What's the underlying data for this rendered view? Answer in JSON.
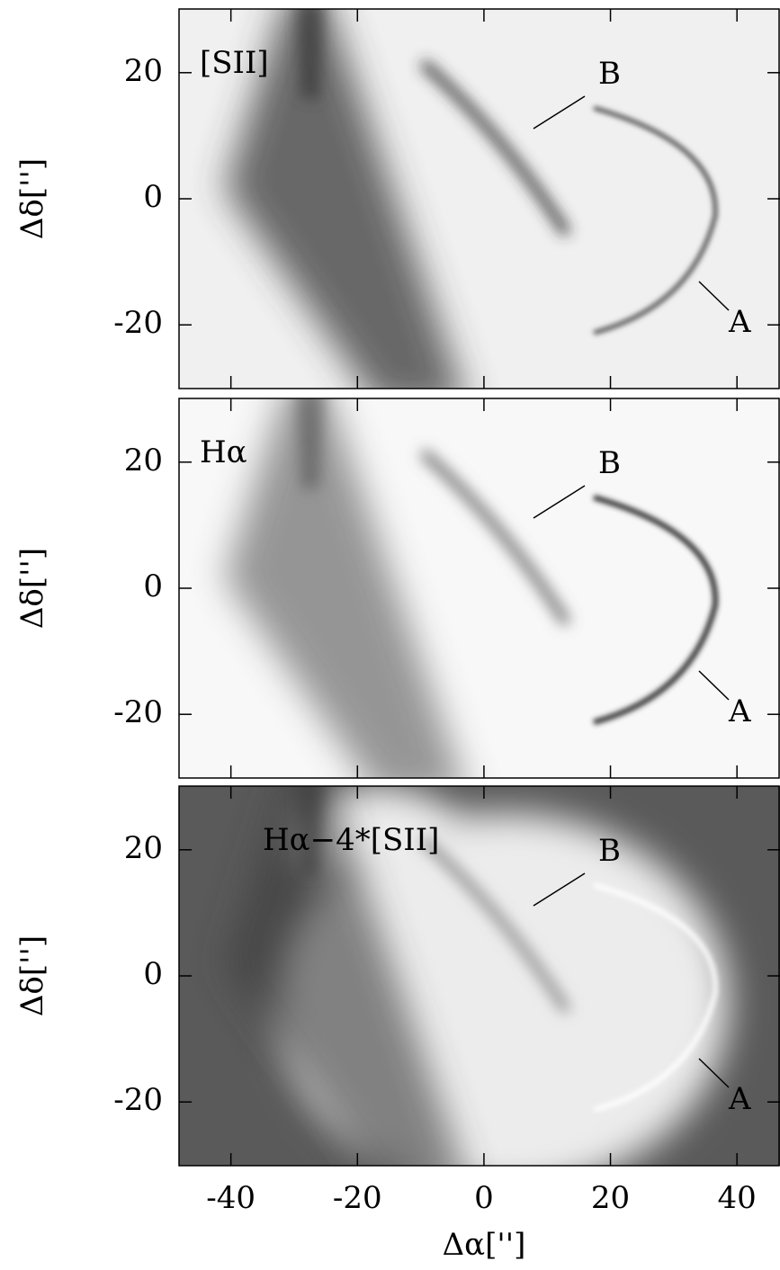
{
  "chart_data": [
    {
      "type": "image",
      "title": "[SII]",
      "annotations": [
        "B",
        "A"
      ],
      "y_label": "Δδ['']",
      "xlim": [
        -48.2,
        46.8
      ],
      "ylim": [
        -30.1,
        30.1
      ],
      "xticks": [
        -40,
        -20,
        0,
        20,
        40
      ],
      "yticks": [
        -20,
        0,
        20
      ]
    },
    {
      "type": "image",
      "title": "Hα",
      "annotations": [
        "B",
        "A"
      ],
      "y_label": "Δδ['']",
      "xlim": [
        -48.2,
        46.8
      ],
      "ylim": [
        -30.1,
        30.1
      ],
      "xticks": [
        -40,
        -20,
        0,
        20,
        40
      ],
      "yticks": [
        -20,
        0,
        20
      ]
    },
    {
      "type": "image",
      "title": "Hα−4*[SII]",
      "annotations": [
        "B",
        "A"
      ],
      "y_label": "Δδ['']",
      "x_label": "Δα['']",
      "xlim": [
        -48.2,
        46.8
      ],
      "ylim": [
        -30.1,
        30.1
      ],
      "xticks": [
        -40,
        -20,
        0,
        20,
        40
      ],
      "yticks": [
        -20,
        0,
        20
      ]
    }
  ]
}
